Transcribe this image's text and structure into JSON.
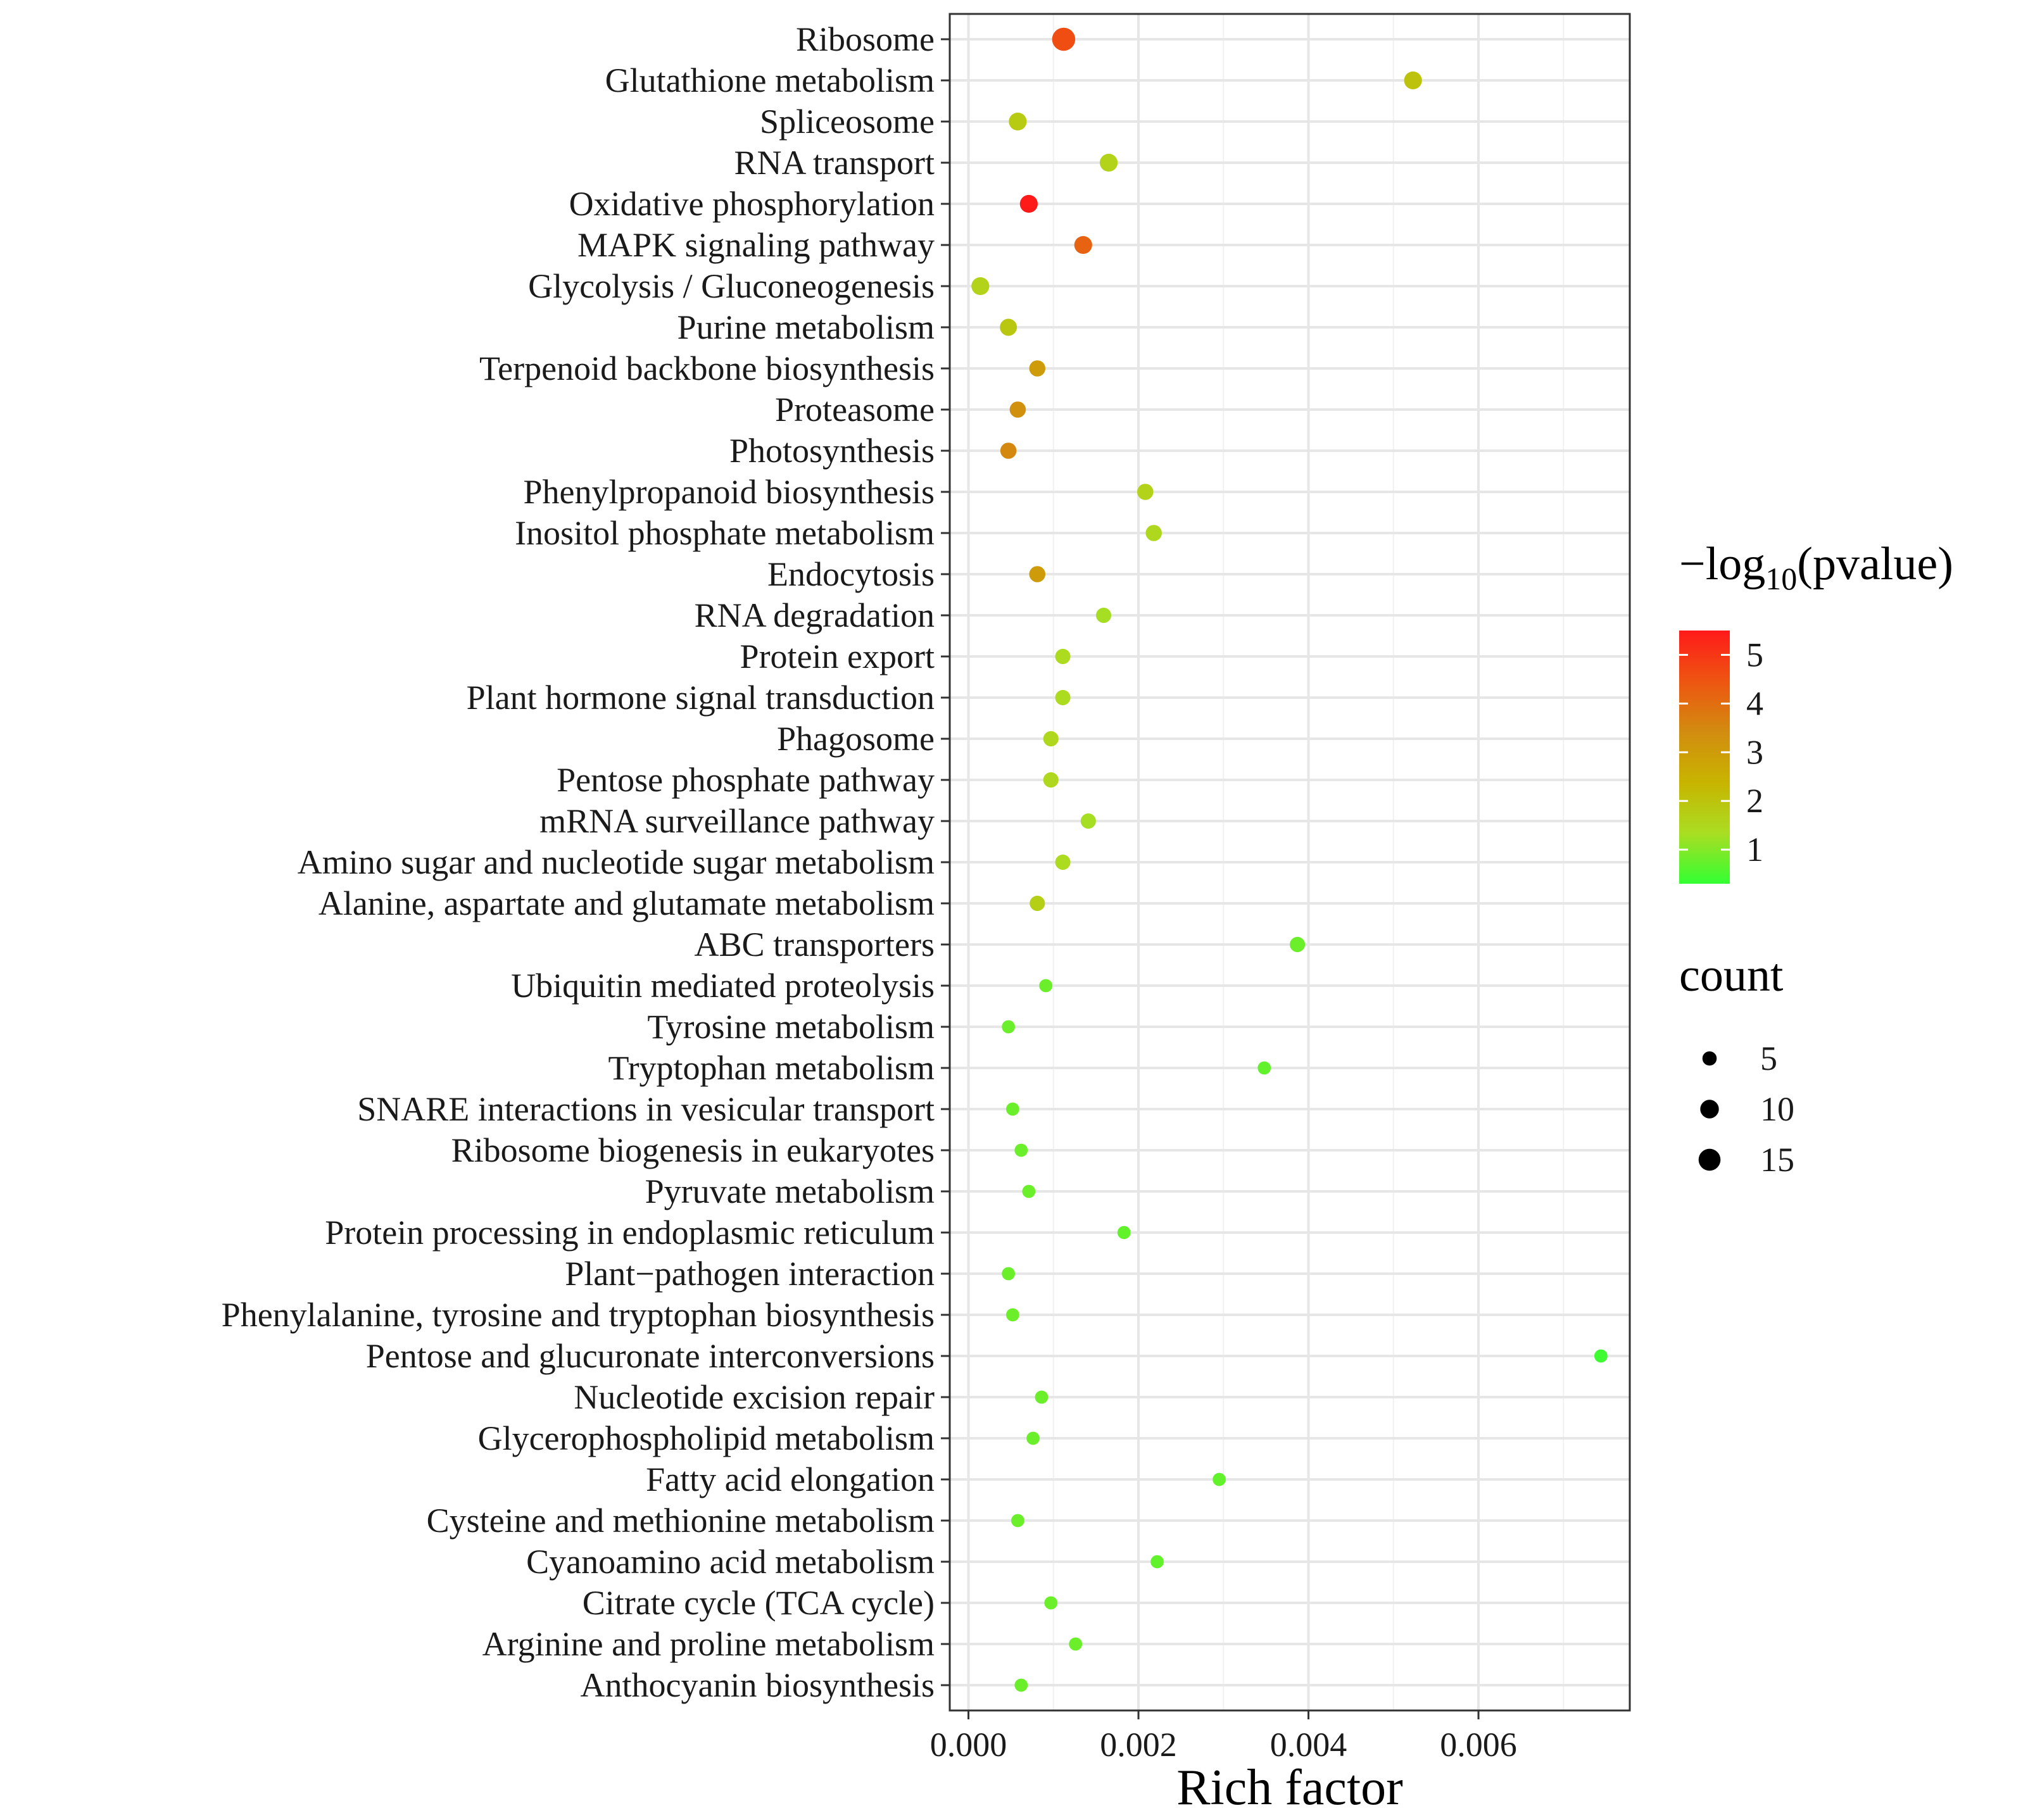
{
  "chart_data": {
    "type": "scatter",
    "xlabel": "Rich factor",
    "ylabel": "",
    "xlim": [
      -0.00022,
      0.00778
    ],
    "xticks": [
      0.0,
      0.002,
      0.004,
      0.006
    ],
    "xtick_labels": [
      "0.000",
      "0.002",
      "0.004",
      "0.006"
    ],
    "grid": true,
    "color_legend": {
      "title_prefix": "−log",
      "title_sub": "10",
      "title_suffix": "(pvalue)",
      "range": [
        0.3,
        5.5
      ],
      "ticks": [
        5,
        4,
        3,
        2,
        1
      ],
      "tick_labels": [
        "5",
        "4",
        "3",
        "2",
        "1"
      ],
      "colors": [
        "#33ff33",
        "#aadd22",
        "#c8b400",
        "#d28c10",
        "#ee5511",
        "#ff1a1a"
      ]
    },
    "size_legend": {
      "title": "count",
      "values": [
        5,
        10,
        15
      ],
      "labels": [
        "5",
        "10",
        "15"
      ]
    },
    "categories": [
      "Ribosome",
      "Glutathione metabolism",
      "Spliceosome",
      "RNA transport",
      "Oxidative phosphorylation",
      "MAPK signaling pathway",
      "Glycolysis / Gluconeogenesis",
      "Purine metabolism",
      "Terpenoid backbone biosynthesis",
      "Proteasome",
      "Photosynthesis",
      "Phenylpropanoid biosynthesis",
      "Inositol phosphate metabolism",
      "Endocytosis",
      "RNA degradation",
      "Protein export",
      "Plant hormone signal transduction",
      "Phagosome",
      "Pentose phosphate pathway",
      "mRNA surveillance pathway",
      "Amino sugar and nucleotide sugar metabolism",
      "Alanine, aspartate and glutamate metabolism",
      "ABC transporters",
      "Ubiquitin mediated proteolysis",
      "Tyrosine metabolism",
      "Tryptophan metabolism",
      "SNARE interactions in vesicular transport",
      "Ribosome biogenesis in eukaryotes",
      "Pyruvate metabolism",
      "Protein processing in endoplasmic reticulum",
      "Plant−pathogen interaction",
      "Phenylalanine, tyrosine and tryptophan biosynthesis",
      "Pentose and glucuronate interconversions",
      "Nucleotide excision repair",
      "Glycerophospholipid metabolism",
      "Fatty acid elongation",
      "Cysteine and methionine metabolism",
      "Cyanoamino acid metabolism",
      "Citrate cycle (TCA cycle)",
      "Arginine and proline metabolism",
      "Anthocyanin biosynthesis"
    ],
    "points": [
      {
        "x": 0.00112,
        "count": 17,
        "neglog10p": 4.6
      },
      {
        "x": 0.00523,
        "count": 9,
        "neglog10p": 2.0
      },
      {
        "x": 0.00058,
        "count": 9,
        "neglog10p": 1.8
      },
      {
        "x": 0.00165,
        "count": 9,
        "neglog10p": 1.6
      },
      {
        "x": 0.00071,
        "count": 9,
        "neglog10p": 5.5
      },
      {
        "x": 0.00135,
        "count": 9,
        "neglog10p": 4.2
      },
      {
        "x": 0.00014,
        "count": 9,
        "neglog10p": 1.6
      },
      {
        "x": 0.00047,
        "count": 8,
        "neglog10p": 1.9
      },
      {
        "x": 0.00081,
        "count": 7,
        "neglog10p": 3.0
      },
      {
        "x": 0.00058,
        "count": 7,
        "neglog10p": 3.3
      },
      {
        "x": 0.00047,
        "count": 7,
        "neglog10p": 3.5
      },
      {
        "x": 0.00208,
        "count": 7,
        "neglog10p": 1.6
      },
      {
        "x": 0.00218,
        "count": 7,
        "neglog10p": 1.5
      },
      {
        "x": 0.00081,
        "count": 7,
        "neglog10p": 3.0
      },
      {
        "x": 0.00159,
        "count": 6,
        "neglog10p": 1.3
      },
      {
        "x": 0.00111,
        "count": 6,
        "neglog10p": 1.4
      },
      {
        "x": 0.00111,
        "count": 6,
        "neglog10p": 1.4
      },
      {
        "x": 0.00097,
        "count": 6,
        "neglog10p": 1.5
      },
      {
        "x": 0.00097,
        "count": 6,
        "neglog10p": 1.5
      },
      {
        "x": 0.00141,
        "count": 6,
        "neglog10p": 1.3
      },
      {
        "x": 0.00111,
        "count": 6,
        "neglog10p": 1.4
      },
      {
        "x": 0.00081,
        "count": 6,
        "neglog10p": 1.7
      },
      {
        "x": 0.00387,
        "count": 6,
        "neglog10p": 0.8
      },
      {
        "x": 0.00091,
        "count": 4,
        "neglog10p": 0.8
      },
      {
        "x": 0.00047,
        "count": 4,
        "neglog10p": 0.8
      },
      {
        "x": 0.00348,
        "count": 4,
        "neglog10p": 0.7
      },
      {
        "x": 0.00052,
        "count": 4,
        "neglog10p": 0.8
      },
      {
        "x": 0.00062,
        "count": 4,
        "neglog10p": 0.8
      },
      {
        "x": 0.00071,
        "count": 4,
        "neglog10p": 0.8
      },
      {
        "x": 0.00183,
        "count": 4,
        "neglog10p": 0.7
      },
      {
        "x": 0.00047,
        "count": 4,
        "neglog10p": 0.8
      },
      {
        "x": 0.00052,
        "count": 4,
        "neglog10p": 0.8
      },
      {
        "x": 0.00744,
        "count": 4,
        "neglog10p": 0.4
      },
      {
        "x": 0.00086,
        "count": 4,
        "neglog10p": 0.8
      },
      {
        "x": 0.00076,
        "count": 4,
        "neglog10p": 0.8
      },
      {
        "x": 0.00295,
        "count": 4,
        "neglog10p": 0.7
      },
      {
        "x": 0.00058,
        "count": 4,
        "neglog10p": 0.8
      },
      {
        "x": 0.00222,
        "count": 4,
        "neglog10p": 0.7
      },
      {
        "x": 0.00097,
        "count": 4,
        "neglog10p": 0.8
      },
      {
        "x": 0.00126,
        "count": 4,
        "neglog10p": 0.8
      },
      {
        "x": 0.00062,
        "count": 4,
        "neglog10p": 0.8
      }
    ]
  }
}
